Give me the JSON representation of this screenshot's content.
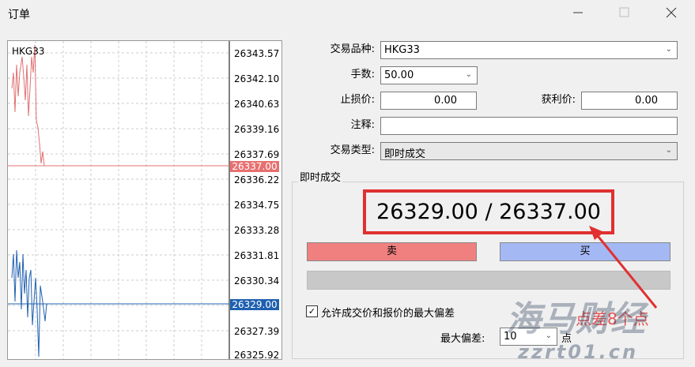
{
  "window": {
    "title": "订单"
  },
  "chart": {
    "symbol": "HKG33",
    "price_labels": [
      "26343.57",
      "26342.10",
      "26340.63",
      "26339.16",
      "26337.69",
      "26336.22",
      "26334.75",
      "26333.28",
      "26331.81",
      "26330.34",
      "26327.39",
      "26325.92"
    ],
    "ask_label": "26337.00",
    "bid_label": "26329.00"
  },
  "form": {
    "symbol_label": "交易品种:",
    "symbol_value": "HKG33",
    "volume_label": "手数:",
    "volume_value": "50.00",
    "stop_loss_label": "止损价:",
    "stop_loss_value": "0.00",
    "take_profit_label": "获利价:",
    "take_profit_value": "0.00",
    "comment_label": "注释:",
    "type_label": "交易类型:",
    "type_value": "即时成交"
  },
  "execution": {
    "title": "即时成交",
    "quote": "26329.00 / 26337.00",
    "sell": "卖",
    "buy": "买",
    "deviation_checkbox": "允许成交价和报价的最大偏差",
    "max_deviation_label": "最大偏差:",
    "max_deviation_value": "10",
    "points_unit": "点"
  },
  "annotation": "点差8个点",
  "watermark": {
    "name": "海马财经",
    "url": "zzrt01.cn"
  }
}
